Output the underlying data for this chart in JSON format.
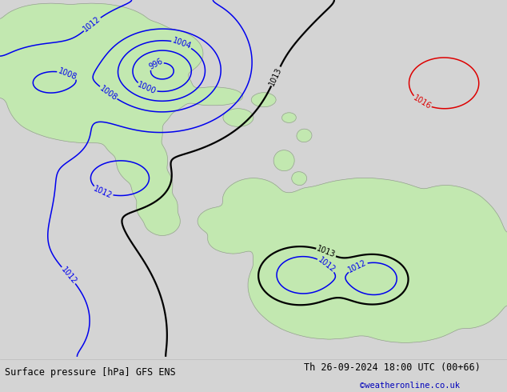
{
  "title_left": "Surface pressure [hPa] GFS ENS",
  "title_right": "Th 26-09-2024 18:00 UTC (00+66)",
  "copyright": "©weatheronline.co.uk",
  "bg_color": "#d4d4d4",
  "land_color": "#c2e8b0",
  "ocean_color": "#d4d4d4",
  "contour_blue": "#0000ee",
  "contour_black": "#000000",
  "contour_red": "#dd0000",
  "coast_color": "#999999",
  "bottom_bar_color": "#d8d8d8",
  "levels_blue": [
    996,
    1000,
    1004,
    1008,
    1012
  ],
  "levels_black": [
    1013
  ],
  "levels_red": [
    1016
  ],
  "label_fontsize": 7,
  "title_fontsize": 8.5
}
